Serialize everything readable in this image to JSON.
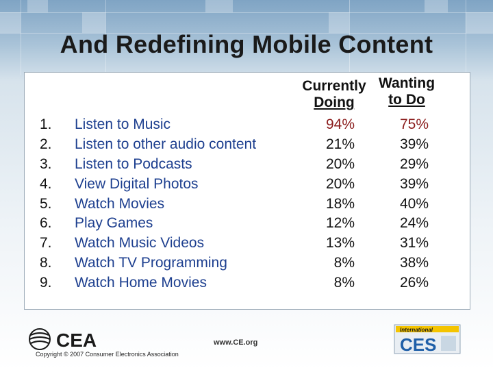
{
  "title": "And Redefining Mobile Content",
  "headers": {
    "doing_line1": "Currently",
    "doing_line2": "Doing",
    "wanting_line1": "Wanting",
    "wanting_line2": "to Do"
  },
  "rows": [
    {
      "num": "1.",
      "label": "Listen to Music",
      "doing": "94%",
      "wanting": "75%"
    },
    {
      "num": "2.",
      "label": "Listen to other audio content",
      "doing": "21%",
      "wanting": "39%"
    },
    {
      "num": "3.",
      "label": "Listen to Podcasts",
      "doing": "20%",
      "wanting": "29%"
    },
    {
      "num": "4.",
      "label": "View Digital Photos",
      "doing": "20%",
      "wanting": "39%"
    },
    {
      "num": "5.",
      "label": "Watch Movies",
      "doing": "18%",
      "wanting": "40%"
    },
    {
      "num": "6.",
      "label": "Play Games",
      "doing": "12%",
      "wanting": "24%"
    },
    {
      "num": "7.",
      "label": "Watch Music Videos",
      "doing": "13%",
      "wanting": "31%"
    },
    {
      "num": "8.",
      "label": "Watch TV Programming",
      "doing": "8%",
      "wanting": "38%"
    },
    {
      "num": "9.",
      "label": "Watch Home Movies",
      "doing": "8%",
      "wanting": "26%"
    }
  ],
  "footer": {
    "cea_logo_text": "CEA",
    "copyright": "Copyright © 2007 Consumer Electronics Association",
    "url": "www.CE.org",
    "ces_top": "International",
    "ces_logo_text": "CES"
  },
  "colors": {
    "label_blue": "#1d3f8f",
    "highlight_red": "#8a1b1b",
    "header_bg": "#7fa4c4"
  }
}
